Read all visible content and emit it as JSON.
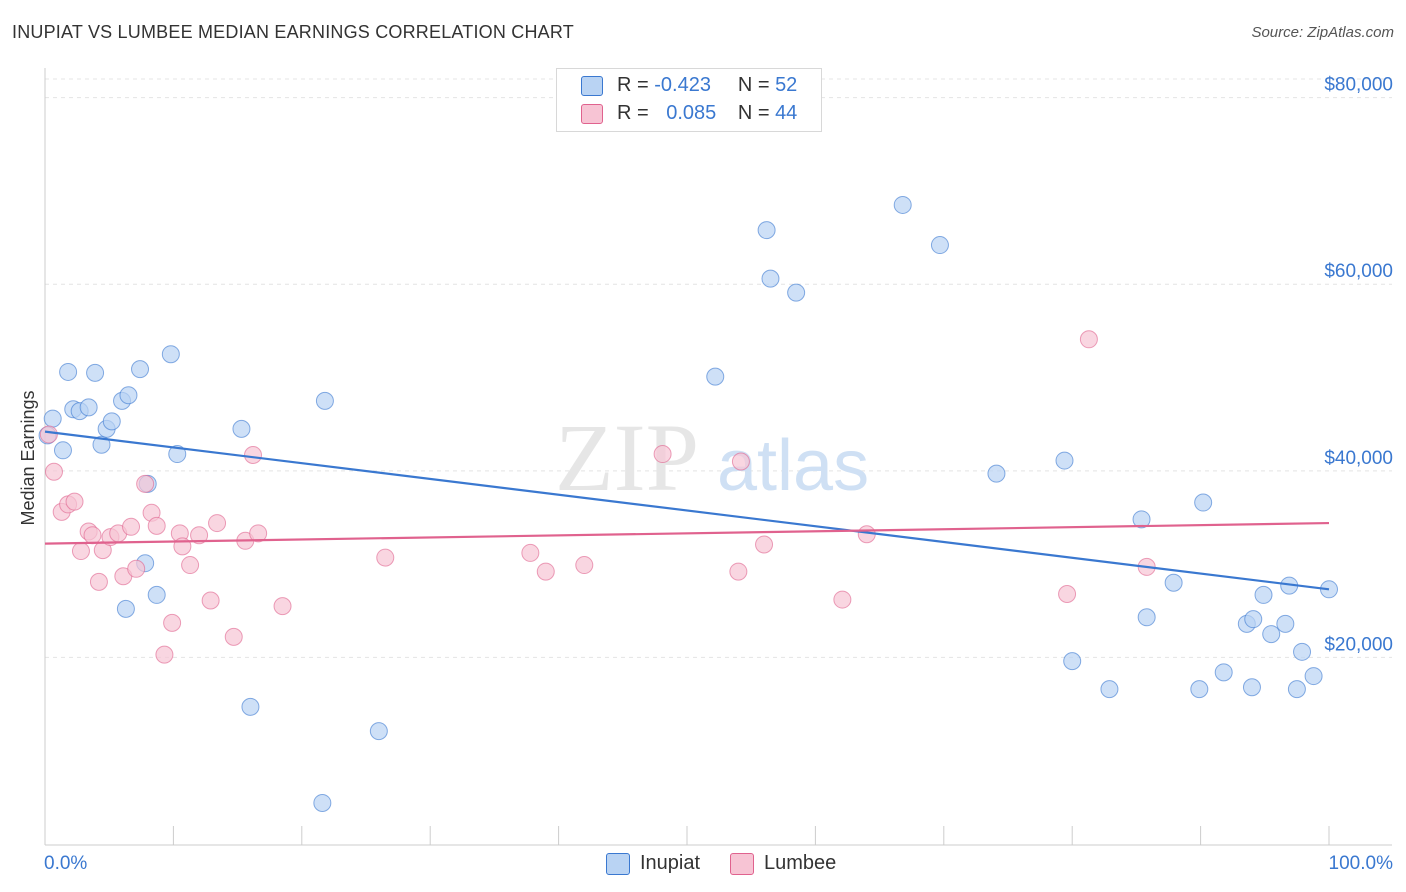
{
  "header": {
    "title": "INUPIAT VS LUMBEE MEDIAN EARNINGS CORRELATION CHART",
    "source": "Source: ZipAtlas.com"
  },
  "watermark": {
    "zip": "ZIP",
    "atlas": "atlas"
  },
  "legend": {
    "rows": [
      {
        "r_label": "R =",
        "r_value": "-0.423",
        "n_label": "N =",
        "n_value": "52"
      },
      {
        "r_label": "R =",
        "r_value": "0.085",
        "n_label": "N =",
        "n_value": "44"
      }
    ]
  },
  "bottom_legend": {
    "inupiat": "Inupiat",
    "lumbee": "Lumbee"
  },
  "chart_data": {
    "type": "scatter",
    "title": "INUPIAT VS LUMBEE MEDIAN EARNINGS CORRELATION CHART",
    "ylabel": "Median Earnings",
    "xlabel": "",
    "xlim": [
      0,
      100
    ],
    "ylim": [
      0,
      82000
    ],
    "x_tick_labels": [
      "0.0%",
      "100.0%"
    ],
    "y_ticks": [
      20000,
      40000,
      60000,
      80000
    ],
    "y_tick_labels": [
      "$20,000",
      "$40,000",
      "$60,000",
      "$80,000"
    ],
    "grid": true,
    "legend_position": "top-center",
    "colors": {
      "inupiat": "#3a78d0",
      "inupiat_fill": "#b9d3f3",
      "lumbee": "#e0628e",
      "lumbee_fill": "#f7c4d4",
      "tick_label": "#3a78d0"
    },
    "series": [
      {
        "name": "Inupiat",
        "trend": {
          "x": [
            0,
            100
          ],
          "y": [
            44200,
            27300
          ]
        },
        "points": [
          [
            0.2,
            43800
          ],
          [
            0.6,
            45600
          ],
          [
            1.4,
            42200
          ],
          [
            1.8,
            50600
          ],
          [
            2.2,
            46600
          ],
          [
            2.7,
            46400
          ],
          [
            3.4,
            46800
          ],
          [
            3.9,
            50500
          ],
          [
            4.4,
            42800
          ],
          [
            4.8,
            44500
          ],
          [
            5.2,
            45300
          ],
          [
            6.0,
            47500
          ],
          [
            6.5,
            48100
          ],
          [
            7.4,
            50900
          ],
          [
            8.0,
            38600
          ],
          [
            8.7,
            26700
          ],
          [
            9.8,
            52500
          ],
          [
            10.3,
            41800
          ],
          [
            6.3,
            25200
          ],
          [
            7.8,
            30100
          ],
          [
            15.3,
            44500
          ],
          [
            16.0,
            14700
          ],
          [
            21.6,
            4400
          ],
          [
            21.8,
            47500
          ],
          [
            26.0,
            12100
          ],
          [
            52.2,
            50100
          ],
          [
            56.2,
            65800
          ],
          [
            56.5,
            60600
          ],
          [
            58.5,
            59100
          ],
          [
            66.8,
            68500
          ],
          [
            69.7,
            64200
          ],
          [
            74.1,
            39700
          ],
          [
            79.4,
            41100
          ],
          [
            80.0,
            19600
          ],
          [
            82.9,
            16600
          ],
          [
            85.4,
            34800
          ],
          [
            85.8,
            24300
          ],
          [
            87.9,
            28000
          ],
          [
            89.9,
            16600
          ],
          [
            90.2,
            36600
          ],
          [
            91.8,
            18400
          ],
          [
            93.6,
            23600
          ],
          [
            94.0,
            16800
          ],
          [
            94.1,
            24100
          ],
          [
            94.9,
            26700
          ],
          [
            95.5,
            22500
          ],
          [
            96.6,
            23600
          ],
          [
            96.9,
            27700
          ],
          [
            97.5,
            16600
          ],
          [
            97.9,
            20600
          ],
          [
            98.8,
            18000
          ],
          [
            100.0,
            27300
          ]
        ]
      },
      {
        "name": "Lumbee",
        "trend": {
          "x": [
            0,
            100
          ],
          "y": [
            32200,
            34400
          ]
        },
        "points": [
          [
            0.3,
            43900
          ],
          [
            0.7,
            39900
          ],
          [
            1.3,
            35600
          ],
          [
            1.8,
            36400
          ],
          [
            2.3,
            36700
          ],
          [
            2.8,
            31400
          ],
          [
            3.4,
            33500
          ],
          [
            3.7,
            33100
          ],
          [
            4.2,
            28100
          ],
          [
            4.5,
            31500
          ],
          [
            5.1,
            32900
          ],
          [
            5.7,
            33300
          ],
          [
            6.1,
            28700
          ],
          [
            6.7,
            34000
          ],
          [
            7.1,
            29500
          ],
          [
            7.8,
            38600
          ],
          [
            8.3,
            35500
          ],
          [
            8.7,
            34100
          ],
          [
            9.3,
            20300
          ],
          [
            9.9,
            23700
          ],
          [
            10.5,
            33300
          ],
          [
            10.7,
            31900
          ],
          [
            11.3,
            29900
          ],
          [
            12.0,
            33100
          ],
          [
            12.9,
            26100
          ],
          [
            13.4,
            34400
          ],
          [
            14.7,
            22200
          ],
          [
            15.6,
            32500
          ],
          [
            16.2,
            41700
          ],
          [
            16.6,
            33300
          ],
          [
            18.5,
            25500
          ],
          [
            26.5,
            30700
          ],
          [
            37.8,
            31200
          ],
          [
            39.0,
            29200
          ],
          [
            42.0,
            29900
          ],
          [
            48.1,
            41800
          ],
          [
            54.0,
            29200
          ],
          [
            54.2,
            41000
          ],
          [
            56.0,
            32100
          ],
          [
            62.1,
            26200
          ],
          [
            64.0,
            33200
          ],
          [
            79.6,
            26800
          ],
          [
            81.3,
            54100
          ],
          [
            85.8,
            29700
          ]
        ]
      }
    ]
  }
}
